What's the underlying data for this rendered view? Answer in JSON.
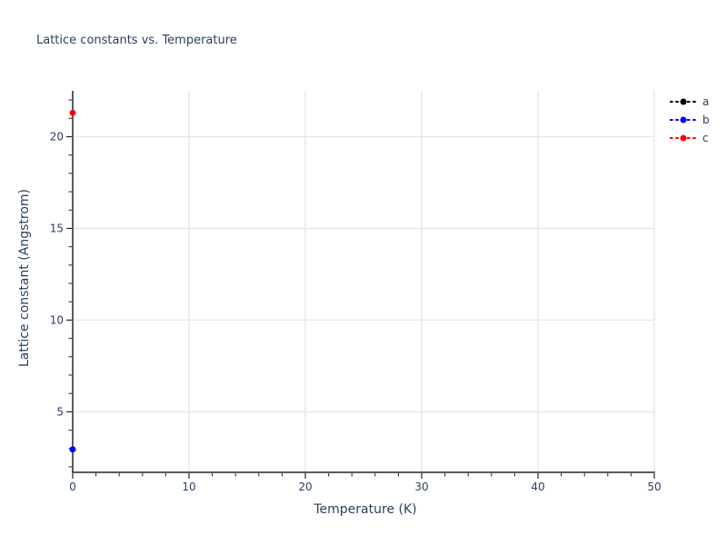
{
  "title": {
    "text": "Lattice constants vs. Temperature"
  },
  "chart_data": {
    "type": "scatter",
    "title": "Lattice constants vs. Temperature",
    "xlabel": "Temperature (K)",
    "ylabel": "Lattice constant (Angstrom)",
    "xlim": [
      0,
      50
    ],
    "ylim": [
      1.7,
      22.5
    ],
    "x_major_ticks": [
      0,
      10,
      20,
      30,
      40,
      50
    ],
    "x_minor_tick_step": 2,
    "y_major_ticks": [
      5,
      10,
      15,
      20
    ],
    "y_minor_tick_step": 1,
    "grid": "major-only",
    "legend_position": "top-right-outside",
    "legend_entries": [
      "a",
      "b",
      "c"
    ],
    "series": [
      {
        "name": "a",
        "color": "#000000",
        "line_style": "dashed",
        "marker": "circle",
        "x": [
          0
        ],
        "y": [
          2.95
        ]
      },
      {
        "name": "b",
        "color": "#0000ff",
        "line_style": "dashed",
        "marker": "circle",
        "x": [
          0
        ],
        "y": [
          2.95
        ]
      },
      {
        "name": "c",
        "color": "#ff0000",
        "line_style": "dashed",
        "marker": "circle",
        "x": [
          0
        ],
        "y": [
          21.3
        ]
      }
    ],
    "colors": {
      "grid": "#e5e5e5",
      "axis": "#252525",
      "tick_label": "#2a3f5f",
      "title_text": "#2a3f5f"
    }
  }
}
